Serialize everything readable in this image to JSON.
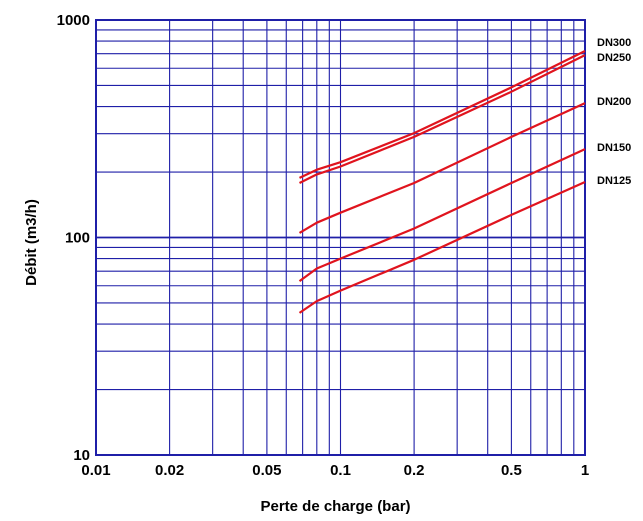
{
  "chart_data": {
    "type": "line",
    "xlabel": "Perte de charge (bar)",
    "ylabel": "Débit (m3/h)",
    "xscale": "log",
    "yscale": "log",
    "xlim": [
      0.01,
      1
    ],
    "ylim": [
      10,
      1000
    ],
    "xticks": [
      {
        "value": 0.01,
        "label": "0.01"
      },
      {
        "value": 0.02,
        "label": "0.02"
      },
      {
        "value": 0.05,
        "label": "0.05"
      },
      {
        "value": 0.1,
        "label": "0.1"
      },
      {
        "value": 0.2,
        "label": "0.2"
      },
      {
        "value": 0.5,
        "label": "0.5"
      },
      {
        "value": 1,
        "label": "1"
      }
    ],
    "yticks": [
      {
        "value": 10,
        "label": "10"
      },
      {
        "value": 100,
        "label": "100"
      },
      {
        "value": 1000,
        "label": "1000"
      }
    ],
    "grid": true,
    "grid_color": "#1f1fa8",
    "line_color": "#e0141e",
    "series": [
      {
        "name": "DN300",
        "x": [
          0.068,
          0.08,
          0.1,
          0.2,
          0.5,
          1
        ],
        "y": [
          188,
          205,
          222,
          302,
          490,
          720
        ]
      },
      {
        "name": "DN250",
        "x": [
          0.068,
          0.08,
          0.1,
          0.2,
          0.5,
          1
        ],
        "y": [
          178,
          195,
          212,
          290,
          468,
          690
        ]
      },
      {
        "name": "DN200",
        "x": [
          0.068,
          0.08,
          0.1,
          0.2,
          0.5,
          1
        ],
        "y": [
          105,
          117,
          130,
          178,
          290,
          415
        ]
      },
      {
        "name": "DN150",
        "x": [
          0.068,
          0.08,
          0.1,
          0.2,
          0.5,
          1
        ],
        "y": [
          63,
          72,
          80,
          110,
          178,
          255
        ]
      },
      {
        "name": "DN125",
        "x": [
          0.068,
          0.08,
          0.1,
          0.2,
          0.5,
          1
        ],
        "y": [
          45,
          51,
          57,
          79,
          127,
          180
        ]
      }
    ]
  }
}
